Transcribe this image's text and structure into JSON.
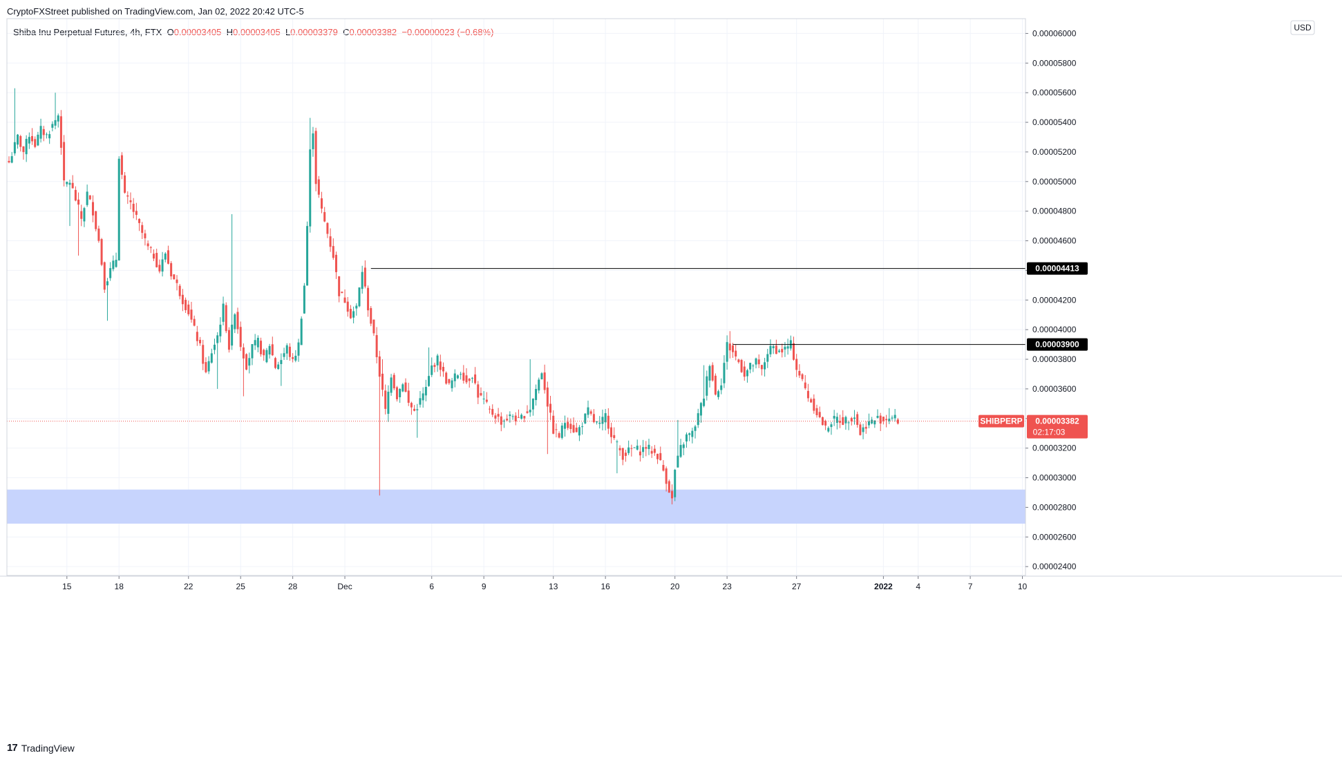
{
  "header": {
    "publisher_line": "CryptoFXStreet published on TradingView.com, Jan 02, 2022 20:42 UTC-5"
  },
  "legend": {
    "symbol_desc": "Shiba Inu Perpetual Futures, 4h, FTX",
    "o_label": "O",
    "o_value": "0.00003405",
    "h_label": "H",
    "h_value": "0.00003405",
    "l_label": "L",
    "l_value": "0.00003379",
    "c_label": "C",
    "c_value": "0.00003382",
    "change": "−0.00000023 (−0.68%)"
  },
  "footer": {
    "brand": "TradingView"
  },
  "colors": {
    "up": "#26a69a",
    "down": "#ef5350",
    "zone": "#c7d4fd",
    "level_line": "#000000",
    "price_line": "#ef5350",
    "grid": "#f0f3fa"
  },
  "chart_data": {
    "type": "candlestick",
    "title": "Shiba Inu Perpetual Futures, 4h, FTX",
    "currency": "USD",
    "ylim": [
      2.34e-05,
      6.1e-05
    ],
    "y_ticks": [
      "0.00006000",
      "0.00005800",
      "0.00005600",
      "0.00005400",
      "0.00005200",
      "0.00005000",
      "0.00004800",
      "0.00004600",
      "0.00004400",
      "0.00004200",
      "0.00004000",
      "0.00003800",
      "0.00003600",
      "0.00003400",
      "0.00003200",
      "0.00003000",
      "0.00002800",
      "0.00002600",
      "0.00002400"
    ],
    "x_ticks": [
      {
        "label": "15",
        "bar": 20,
        "bold": false
      },
      {
        "label": "18",
        "bar": 38,
        "bold": false
      },
      {
        "label": "22",
        "bar": 62,
        "bold": false
      },
      {
        "label": "25",
        "bar": 80,
        "bold": false
      },
      {
        "label": "28",
        "bar": 98,
        "bold": false
      },
      {
        "label": "Dec",
        "bar": 116,
        "bold": false
      },
      {
        "label": "6",
        "bar": 146,
        "bold": false
      },
      {
        "label": "9",
        "bar": 164,
        "bold": false
      },
      {
        "label": "13",
        "bar": 188,
        "bold": false
      },
      {
        "label": "16",
        "bar": 206,
        "bold": false
      },
      {
        "label": "20",
        "bar": 230,
        "bold": false
      },
      {
        "label": "23",
        "bar": 248,
        "bold": false
      },
      {
        "label": "27",
        "bar": 272,
        "bold": false
      },
      {
        "label": "2022",
        "bar": 302,
        "bold": true
      },
      {
        "label": "4",
        "bar": 314,
        "bold": false
      },
      {
        "label": "7",
        "bar": 332,
        "bold": false
      },
      {
        "label": "10",
        "bar": 350,
        "bold": false
      }
    ],
    "bars_total": 352,
    "path": [
      [
        0,
        5.13e-05
      ],
      [
        3,
        5.3e-05
      ],
      [
        5,
        5.2e-05
      ],
      [
        7,
        5.32e-05
      ],
      [
        9,
        5.25e-05
      ],
      [
        11,
        5.35e-05
      ],
      [
        13,
        5.31e-05
      ],
      [
        15,
        5.38e-05
      ],
      [
        17,
        5.45e-05
      ],
      [
        18,
        5.25e-05
      ],
      [
        19,
        4.98e-05
      ],
      [
        21,
        5e-05
      ],
      [
        23,
        4.88e-05
      ],
      [
        25,
        4.75e-05
      ],
      [
        27,
        4.92e-05
      ],
      [
        29,
        4.8e-05
      ],
      [
        31,
        4.6e-05
      ],
      [
        33,
        4.3e-05
      ],
      [
        35,
        4.4e-05
      ],
      [
        37,
        4.48e-05
      ],
      [
        38,
        5.18e-05
      ],
      [
        40,
        4.9e-05
      ],
      [
        42,
        4.85e-05
      ],
      [
        44,
        4.75e-05
      ],
      [
        46,
        4.65e-05
      ],
      [
        48,
        4.55e-05
      ],
      [
        50,
        4.5e-05
      ],
      [
        52,
        4.4e-05
      ],
      [
        54,
        4.52e-05
      ],
      [
        56,
        4.38e-05
      ],
      [
        58,
        4.3e-05
      ],
      [
        60,
        4.2e-05
      ],
      [
        62,
        4.12e-05
      ],
      [
        64,
        4e-05
      ],
      [
        66,
        3.88e-05
      ],
      [
        68,
        3.7e-05
      ],
      [
        70,
        3.85e-05
      ],
      [
        72,
        3.96e-05
      ],
      [
        74,
        4.15e-05
      ],
      [
        76,
        3.88e-05
      ],
      [
        78,
        4.13e-05
      ],
      [
        80,
        3.9e-05
      ],
      [
        82,
        3.76e-05
      ],
      [
        84,
        3.88e-05
      ],
      [
        86,
        3.92e-05
      ],
      [
        88,
        3.8e-05
      ],
      [
        90,
        3.9e-05
      ],
      [
        92,
        3.75e-05
      ],
      [
        94,
        3.8e-05
      ],
      [
        96,
        3.88e-05
      ],
      [
        98,
        3.78e-05
      ],
      [
        100,
        3.9e-05
      ],
      [
        102,
        4.3e-05
      ],
      [
        103,
        4.7e-05
      ],
      [
        104,
        5.2e-05
      ],
      [
        105,
        5.35e-05
      ],
      [
        106,
        5e-05
      ],
      [
        108,
        4.8e-05
      ],
      [
        110,
        4.65e-05
      ],
      [
        112,
        4.5e-05
      ],
      [
        114,
        4.25e-05
      ],
      [
        116,
        4.2e-05
      ],
      [
        118,
        4.1e-05
      ],
      [
        120,
        4.15e-05
      ],
      [
        122,
        4.4e-05
      ],
      [
        124,
        4.15e-05
      ],
      [
        126,
        3.95e-05
      ],
      [
        128,
        3.7e-05
      ],
      [
        130,
        3.45e-05
      ],
      [
        132,
        3.7e-05
      ],
      [
        134,
        3.55e-05
      ],
      [
        136,
        3.65e-05
      ],
      [
        138,
        3.5e-05
      ],
      [
        140,
        3.45e-05
      ],
      [
        142,
        3.52e-05
      ],
      [
        144,
        3.6e-05
      ],
      [
        146,
        3.75e-05
      ],
      [
        148,
        3.8e-05
      ],
      [
        150,
        3.7e-05
      ],
      [
        152,
        3.62e-05
      ],
      [
        154,
        3.68e-05
      ],
      [
        156,
        3.72e-05
      ],
      [
        158,
        3.65e-05
      ],
      [
        160,
        3.7e-05
      ],
      [
        162,
        3.56e-05
      ],
      [
        164,
        3.52e-05
      ],
      [
        166,
        3.45e-05
      ],
      [
        168,
        3.42e-05
      ],
      [
        170,
        3.38e-05
      ],
      [
        172,
        3.4e-05
      ],
      [
        174,
        3.42e-05
      ],
      [
        176,
        3.38e-05
      ],
      [
        178,
        3.43e-05
      ],
      [
        180,
        3.47e-05
      ],
      [
        182,
        3.6e-05
      ],
      [
        184,
        3.72e-05
      ],
      [
        186,
        3.5e-05
      ],
      [
        188,
        3.32e-05
      ],
      [
        190,
        3.28e-05
      ],
      [
        192,
        3.38e-05
      ],
      [
        194,
        3.35e-05
      ],
      [
        196,
        3.3e-05
      ],
      [
        198,
        3.37e-05
      ],
      [
        200,
        3.45e-05
      ],
      [
        202,
        3.38e-05
      ],
      [
        204,
        3.35e-05
      ],
      [
        206,
        3.42e-05
      ],
      [
        208,
        3.3e-05
      ],
      [
        210,
        3.22e-05
      ],
      [
        212,
        3.15e-05
      ],
      [
        214,
        3.18e-05
      ],
      [
        216,
        3.2e-05
      ],
      [
        218,
        3.18e-05
      ],
      [
        220,
        3.21e-05
      ],
      [
        222,
        3.18e-05
      ],
      [
        224,
        3.15e-05
      ],
      [
        226,
        3.05e-05
      ],
      [
        228,
        2.92e-05
      ],
      [
        229,
        2.85e-05
      ],
      [
        230,
        3.05e-05
      ],
      [
        232,
        3.2e-05
      ],
      [
        234,
        3.28e-05
      ],
      [
        236,
        3.3e-05
      ],
      [
        238,
        3.42e-05
      ],
      [
        240,
        3.55e-05
      ],
      [
        242,
        3.78e-05
      ],
      [
        244,
        3.56e-05
      ],
      [
        246,
        3.65e-05
      ],
      [
        248,
        3.9e-05
      ],
      [
        250,
        3.85e-05
      ],
      [
        252,
        3.78e-05
      ],
      [
        254,
        3.7e-05
      ],
      [
        256,
        3.75e-05
      ],
      [
        258,
        3.78e-05
      ],
      [
        260,
        3.72e-05
      ],
      [
        262,
        3.85e-05
      ],
      [
        264,
        3.88e-05
      ],
      [
        266,
        3.85e-05
      ],
      [
        268,
        3.87e-05
      ],
      [
        270,
        3.9e-05
      ],
      [
        272,
        3.74e-05
      ],
      [
        274,
        3.65e-05
      ],
      [
        276,
        3.55e-05
      ],
      [
        278,
        3.48e-05
      ],
      [
        280,
        3.4e-05
      ],
      [
        282,
        3.33e-05
      ],
      [
        284,
        3.38e-05
      ],
      [
        286,
        3.4e-05
      ],
      [
        288,
        3.38e-05
      ],
      [
        290,
        3.4e-05
      ],
      [
        292,
        3.42e-05
      ],
      [
        294,
        3.3e-05
      ],
      [
        296,
        3.36e-05
      ],
      [
        298,
        3.38e-05
      ],
      [
        300,
        3.4e-05
      ],
      [
        302,
        3.39e-05
      ],
      [
        304,
        3.41e-05
      ],
      [
        306,
        3.4e-05
      ],
      [
        307,
        3.382e-05
      ]
    ],
    "spikes": [
      {
        "bar": 2,
        "high": 5.63e-05
      },
      {
        "bar": 16,
        "high": 5.6e-05
      },
      {
        "bar": 21,
        "low": 4.7e-05
      },
      {
        "bar": 24,
        "low": 4.5e-05
      },
      {
        "bar": 34,
        "low": 4.06e-05
      },
      {
        "bar": 77,
        "high": 4.78e-05
      },
      {
        "bar": 72,
        "low": 3.6e-05
      },
      {
        "bar": 81,
        "low": 3.55e-05
      },
      {
        "bar": 94,
        "low": 3.62e-05
      },
      {
        "bar": 104,
        "high": 5.43e-05
      },
      {
        "bar": 128,
        "low": 2.88e-05
      },
      {
        "bar": 129,
        "high": 3.8e-05
      },
      {
        "bar": 141,
        "low": 3.27e-05
      },
      {
        "bar": 145,
        "high": 3.88e-05
      },
      {
        "bar": 180,
        "high": 3.8e-05
      },
      {
        "bar": 186,
        "low": 3.16e-05
      },
      {
        "bar": 210,
        "low": 3.03e-05
      },
      {
        "bar": 229,
        "low": 2.82e-05
      },
      {
        "bar": 231,
        "high": 3.39e-05
      },
      {
        "bar": 240,
        "high": 3.76e-05
      },
      {
        "bar": 249,
        "high": 3.99e-05
      },
      {
        "bar": 270,
        "high": 3.96e-05
      },
      {
        "bar": 284,
        "low": 3.29e-05
      },
      {
        "bar": 295,
        "low": 3.26e-05
      },
      {
        "bar": 304,
        "high": 3.47e-05
      }
    ],
    "zone": {
      "from": 2.69e-05,
      "to": 2.92e-05
    },
    "levels": [
      {
        "label": "0.00004413",
        "value": 4.413e-05,
        "from_bar": 125
      },
      {
        "label": "0.00003900",
        "value": 3.9e-05,
        "from_bar": 250
      }
    ],
    "last": {
      "symbol": "SHIBPERP",
      "label": "0.00003382",
      "value": 3.382e-05,
      "countdown": "02:17:03"
    }
  }
}
